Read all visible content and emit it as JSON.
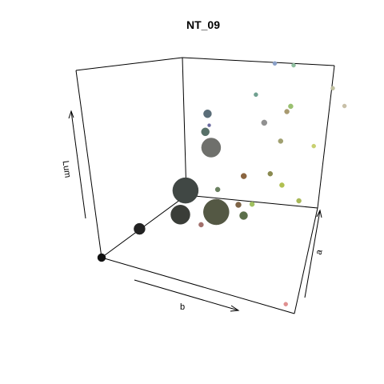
{
  "chart_data": {
    "type": "scatter",
    "title": "NT_09",
    "axes": {
      "x": "b",
      "y": "a",
      "z": "Lum"
    },
    "projection": "3d-perspective",
    "grid": false,
    "legend": "none",
    "points": [
      {
        "b": 0.0,
        "a": 0.0,
        "z": 0.0,
        "size": 5.0,
        "color": "#111111"
      },
      {
        "b": 0.1,
        "a": 0.25,
        "z": 0.1,
        "size": 7.0,
        "color": "#222222"
      },
      {
        "b": 0.18,
        "a": 0.55,
        "z": 0.1,
        "size": 12.0,
        "color": "#3a3d38"
      },
      {
        "b": 0.15,
        "a": 0.7,
        "z": 0.17,
        "size": 16.0,
        "color": "#404744"
      },
      {
        "b": 0.3,
        "a": 0.7,
        "z": 0.1,
        "size": 16.0,
        "color": "#545844"
      },
      {
        "b": 0.42,
        "a": 0.75,
        "z": 0.1,
        "size": 5.0,
        "color": "#5b6f4a"
      },
      {
        "b": 0.32,
        "a": 0.7,
        "z": 0.45,
        "size": 12.0,
        "color": "#6f706c"
      },
      {
        "b": 0.25,
        "a": 0.8,
        "z": 0.48,
        "size": 5.0,
        "color": "#577068"
      },
      {
        "b": 0.25,
        "a": 0.85,
        "z": 0.56,
        "size": 5.0,
        "color": "#5a6d78"
      },
      {
        "b": 0.28,
        "a": 0.75,
        "z": 0.4,
        "size": 4.0,
        "color": "#7bd07a"
      },
      {
        "b": 0.2,
        "a": 0.95,
        "z": 0.45,
        "size": 2.0,
        "color": "#6a6aa0"
      },
      {
        "b": 0.45,
        "a": 0.75,
        "z": 0.32,
        "size": 3.5,
        "color": "#8a6540"
      },
      {
        "b": 0.45,
        "a": 0.65,
        "z": 0.2,
        "size": 3.5,
        "color": "#7e6446"
      },
      {
        "b": 0.4,
        "a": 0.55,
        "z": 0.3,
        "size": 3.0,
        "color": "#6a8060"
      },
      {
        "b": 0.36,
        "a": 0.4,
        "z": 0.15,
        "size": 3.0,
        "color": "#a2706c"
      },
      {
        "b": 0.55,
        "a": 0.6,
        "z": 0.25,
        "size": 3.0,
        "color": "#a0c060"
      },
      {
        "b": 0.62,
        "a": 0.7,
        "z": 0.4,
        "size": 3.0,
        "color": "#8a8a50"
      },
      {
        "b": 0.65,
        "a": 0.8,
        "z": 0.55,
        "size": 3.0,
        "color": "#a0a070"
      },
      {
        "b": 0.7,
        "a": 0.65,
        "z": 0.38,
        "size": 3.0,
        "color": "#b0c050"
      },
      {
        "b": 0.78,
        "a": 0.65,
        "z": 0.32,
        "size": 3.0,
        "color": "#a8b858"
      },
      {
        "b": 0.6,
        "a": 0.75,
        "z": 0.65,
        "size": 3.5,
        "color": "#909090"
      },
      {
        "b": 0.68,
        "a": 0.85,
        "z": 0.7,
        "size": 3.0,
        "color": "#a89a70"
      },
      {
        "b": 0.72,
        "a": 0.82,
        "z": 0.75,
        "size": 3.0,
        "color": "#9ac070"
      },
      {
        "b": 0.5,
        "a": 0.9,
        "z": 0.72,
        "size": 2.5,
        "color": "#70a090"
      },
      {
        "b": 0.85,
        "a": 0.75,
        "z": 0.6,
        "size": 2.5,
        "color": "#c8d070"
      },
      {
        "b": 0.6,
        "a": 0.95,
        "z": 0.9,
        "size": 2.5,
        "color": "#8aa0c8"
      },
      {
        "b": 0.7,
        "a": 0.95,
        "z": 0.92,
        "size": 2.5,
        "color": "#90c0a0"
      },
      {
        "b": 0.92,
        "a": 0.9,
        "z": 0.88,
        "size": 2.5,
        "color": "#c0c0a0"
      },
      {
        "b": 0.97,
        "a": 0.9,
        "z": 0.8,
        "size": 2.5,
        "color": "#c8c0a8"
      },
      {
        "b": 0.92,
        "a": 0.08,
        "z": 0.0,
        "size": 2.5,
        "color": "#e09090"
      }
    ]
  }
}
